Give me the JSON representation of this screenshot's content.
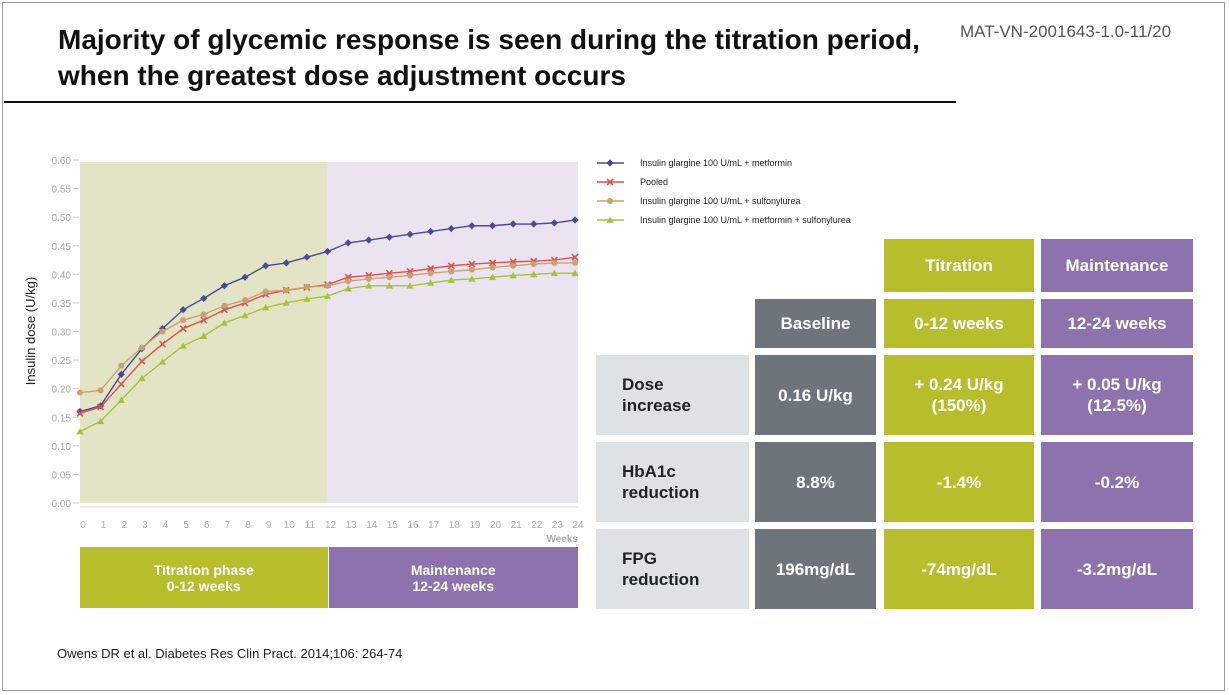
{
  "document_code": "MAT-VN-2001643-1.0-11/20",
  "title": "Majority of glycemic response is seen during the titration period,\nwhen the greatest dose adjustment occurs",
  "citation": "Owens DR et al. Diabetes Res Clin Pract. 2014;106: 264-74",
  "colors": {
    "titration": "#b7bd2b",
    "titration_bg": "#e3e4c6",
    "maintenance": "#8e72ad",
    "maintenance_bg": "#ece3f0",
    "baseline": "#6d757b",
    "row_header": "#dfe2e4"
  },
  "phases": {
    "titration": "Titration phase\n0-12 weeks",
    "maintenance": "Maintenance\n12-24 weeks"
  },
  "chart_data": {
    "type": "line",
    "ylabel": "Insulin dose (U/kg)",
    "xlabel": "Weeks",
    "x": [
      0,
      1,
      2,
      3,
      4,
      5,
      6,
      7,
      8,
      9,
      10,
      11,
      12,
      13,
      14,
      15,
      16,
      17,
      18,
      19,
      20,
      21,
      22,
      23,
      24
    ],
    "xlim": [
      0,
      24
    ],
    "ylim": [
      0,
      0.6
    ],
    "yticks": [
      "0.00",
      "0.05",
      "0.10",
      "0.15",
      "0.20",
      "0.25",
      "0.30",
      "0.35",
      "0.40",
      "0.45",
      "0.50",
      "0.55",
      "0.60"
    ],
    "legend_position": "top-right",
    "series": [
      {
        "name": "Insulin glargine 100 U/mL + metformin",
        "color": "#4a4a96",
        "marker": "diamond",
        "values": [
          0.16,
          0.17,
          0.225,
          0.27,
          0.305,
          0.338,
          0.358,
          0.38,
          0.395,
          0.415,
          0.42,
          0.43,
          0.44,
          0.455,
          0.46,
          0.465,
          0.47,
          0.475,
          0.48,
          0.485,
          0.485,
          0.488,
          0.488,
          0.49,
          0.495
        ]
      },
      {
        "name": "Pooled",
        "color": "#d9534f",
        "marker": "x",
        "values": [
          0.157,
          0.168,
          0.208,
          0.248,
          0.278,
          0.305,
          0.32,
          0.338,
          0.35,
          0.365,
          0.372,
          0.377,
          0.382,
          0.395,
          0.398,
          0.402,
          0.405,
          0.41,
          0.415,
          0.418,
          0.42,
          0.422,
          0.423,
          0.425,
          0.43
        ]
      },
      {
        "name": "Insulin glargine 100 U/mL + sulfonylurea",
        "color": "#c9a271",
        "marker": "circle",
        "values": [
          0.193,
          0.197,
          0.24,
          0.272,
          0.3,
          0.32,
          0.33,
          0.345,
          0.355,
          0.37,
          0.372,
          0.378,
          0.38,
          0.388,
          0.392,
          0.395,
          0.398,
          0.402,
          0.405,
          0.408,
          0.412,
          0.415,
          0.418,
          0.42,
          0.42
        ]
      },
      {
        "name": "Insulin glargine 100 U/mL + metformin + sulfonylurea",
        "color": "#a6c43a",
        "marker": "triangle",
        "values": [
          0.125,
          0.143,
          0.18,
          0.218,
          0.247,
          0.275,
          0.292,
          0.315,
          0.328,
          0.342,
          0.35,
          0.357,
          0.362,
          0.375,
          0.38,
          0.38,
          0.38,
          0.385,
          0.39,
          0.392,
          0.395,
          0.398,
          0.4,
          0.402,
          0.402
        ]
      }
    ]
  },
  "table": {
    "group_headers": {
      "titration": "Titration",
      "maintenance": "Maintenance"
    },
    "col_headers": {
      "baseline": "Baseline",
      "titration": "0-12 weeks",
      "maintenance": "12-24 weeks"
    },
    "rows": [
      {
        "label": "Dose\nincrease",
        "baseline": "0.16 U/kg",
        "titration": "+ 0.24 U/kg\n(150%)",
        "maintenance": "+ 0.05 U/kg\n(12.5%)"
      },
      {
        "label": "HbA1c\nreduction",
        "baseline": "8.8%",
        "titration": "-1.4%",
        "maintenance": "-0.2%"
      },
      {
        "label": "FPG\nreduction",
        "baseline": "196mg/dL",
        "titration": "-74mg/dL",
        "maintenance": "-3.2mg/dL"
      }
    ]
  }
}
